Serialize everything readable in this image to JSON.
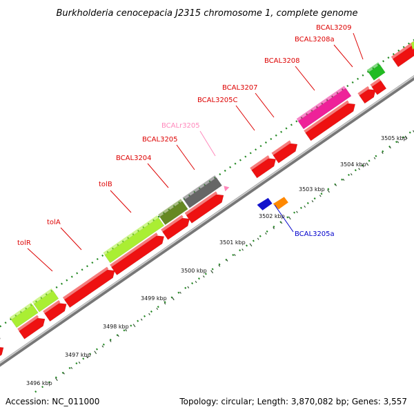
{
  "title": "Burkholderia cenocepacia J2315 chromosome 1, complete genome",
  "footer": {
    "accession": "Accession: NC_011000",
    "summary": "Topology: circular; Length: 3,870,082 bp; Genes: 3,557"
  },
  "ticks": [
    {
      "label": "3496 kbp"
    },
    {
      "label": "3497 kbp"
    },
    {
      "label": "3498 kbp"
    },
    {
      "label": "3499 kbp"
    },
    {
      "label": "3500 kbp"
    },
    {
      "label": "3501 kbp"
    },
    {
      "label": "3502 kbp"
    },
    {
      "label": "3503 kbp"
    },
    {
      "label": "3504 kbp"
    },
    {
      "label": "3505 kbp"
    }
  ],
  "gene_labels": [
    {
      "text": "tolR",
      "color": "#dd0000"
    },
    {
      "text": "tolA",
      "color": "#dd0000"
    },
    {
      "text": "tolB",
      "color": "#dd0000"
    },
    {
      "text": "BCAL3204",
      "color": "#dd0000"
    },
    {
      "text": "BCAL3205",
      "color": "#dd0000"
    },
    {
      "text": "BCALr3205",
      "color": "#ff88bb"
    },
    {
      "text": "BCAL3205C",
      "color": "#dd0000"
    },
    {
      "text": "BCAL3207",
      "color": "#dd0000"
    },
    {
      "text": "BCAL3208",
      "color": "#dd0000"
    },
    {
      "text": "BCAL3208a",
      "color": "#dd0000"
    },
    {
      "text": "BCAL3209",
      "color": "#dd0000"
    },
    {
      "text": "BCAL3205a",
      "color": "#0000cc"
    }
  ],
  "colors": {
    "cds": "#ee1111",
    "highlight_green": "#aaee33",
    "olive": "#668822",
    "dark_gray": "#666666",
    "light_gray": "#bbbbbb",
    "magenta": "#ee2299",
    "green": "#22bb22",
    "blue": "#1111cc",
    "orange": "#ff8800",
    "pink": "#ff88bb",
    "backbone": "#888888",
    "gc_dots": "#228822"
  }
}
